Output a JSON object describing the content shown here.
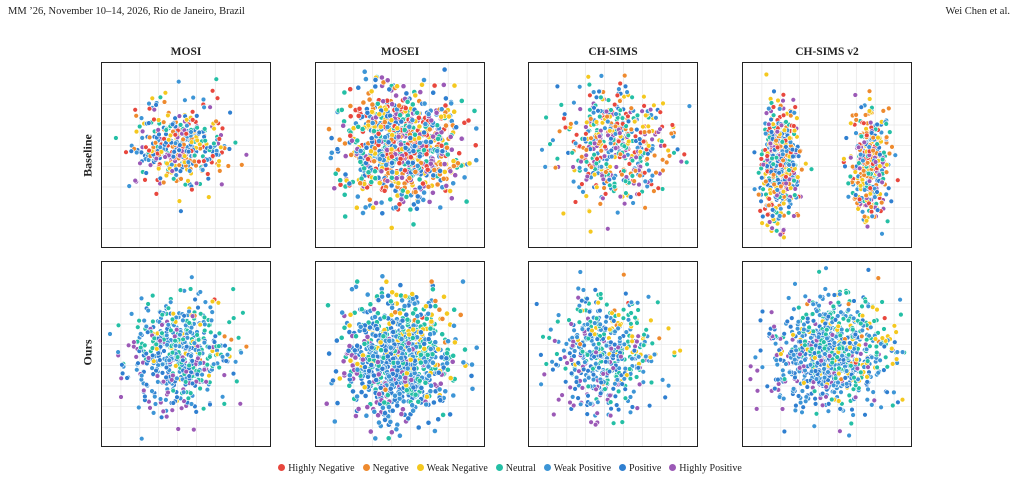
{
  "header": {
    "venue": "MM ’26, November 10–14, 2026, Rio de Janeiro, Brazil",
    "authors": "Wei Chen et al."
  },
  "columns": [
    "MOSI",
    "MOSEI",
    "CH-SIMS",
    "CH-SIMS v2"
  ],
  "rows": [
    "Baseline",
    "Ours"
  ],
  "legend": [
    {
      "label": "Highly Negative",
      "color": "#e8473d"
    },
    {
      "label": "Negative",
      "color": "#ee8a2e"
    },
    {
      "label": "Weak Negative",
      "color": "#f4c81f"
    },
    {
      "label": "Neutral",
      "color": "#24bfa5"
    },
    {
      "label": "Weak Positive",
      "color": "#3d95d6"
    },
    {
      "label": "Positive",
      "color": "#2f7fd0"
    },
    {
      "label": "Highly Positive",
      "color": "#9b59b6"
    }
  ],
  "chart_data": {
    "type": "scatter",
    "grid": true,
    "legend_position": "bottom",
    "panels": [
      {
        "row": "Baseline",
        "column": "MOSI",
        "points": 420
      },
      {
        "row": "Baseline",
        "column": "MOSEI",
        "points": 2600
      },
      {
        "row": "Baseline",
        "column": "CH-SIMS",
        "points": 520
      },
      {
        "row": "Baseline",
        "column": "CH-SIMS v2",
        "points": 900
      },
      {
        "row": "Ours",
        "column": "MOSI",
        "points": 560
      },
      {
        "row": "Ours",
        "column": "MOSEI",
        "points": 2600
      },
      {
        "row": "Ours",
        "column": "CH-SIMS",
        "points": 520
      },
      {
        "row": "Ours",
        "column": "CH-SIMS v2",
        "points": 1200
      }
    ]
  }
}
